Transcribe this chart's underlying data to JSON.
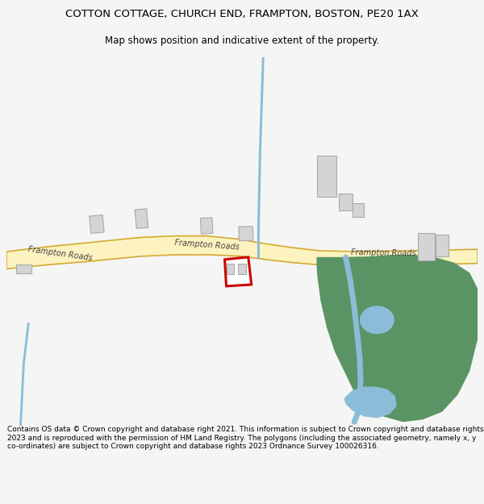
{
  "title": "COTTON COTTAGE, CHURCH END, FRAMPTON, BOSTON, PE20 1AX",
  "subtitle": "Map shows position and indicative extent of the property.",
  "footer": "Contains OS data © Crown copyright and database right 2021. This information is subject to Crown copyright and database rights 2023 and is reproduced with the permission of HM Land Registry. The polygons (including the associated geometry, namely x, y co-ordinates) are subject to Crown copyright and database rights 2023 Ordnance Survey 100026316.",
  "bg_color": "#f5f5f5",
  "map_bg": "#ffffff",
  "road_color": "#fdf3c0",
  "road_edge_color": "#d4aa30",
  "road_label": "Frampton Roads",
  "blue_color": "#8bbdd9",
  "green_color": "#5a9465",
  "building_color": "#d4d4d4",
  "building_edge_color": "#aaaaaa",
  "plot_color": "#cc0000",
  "title_fontsize": 9.5,
  "subtitle_fontsize": 8.5,
  "footer_fontsize": 6.5
}
